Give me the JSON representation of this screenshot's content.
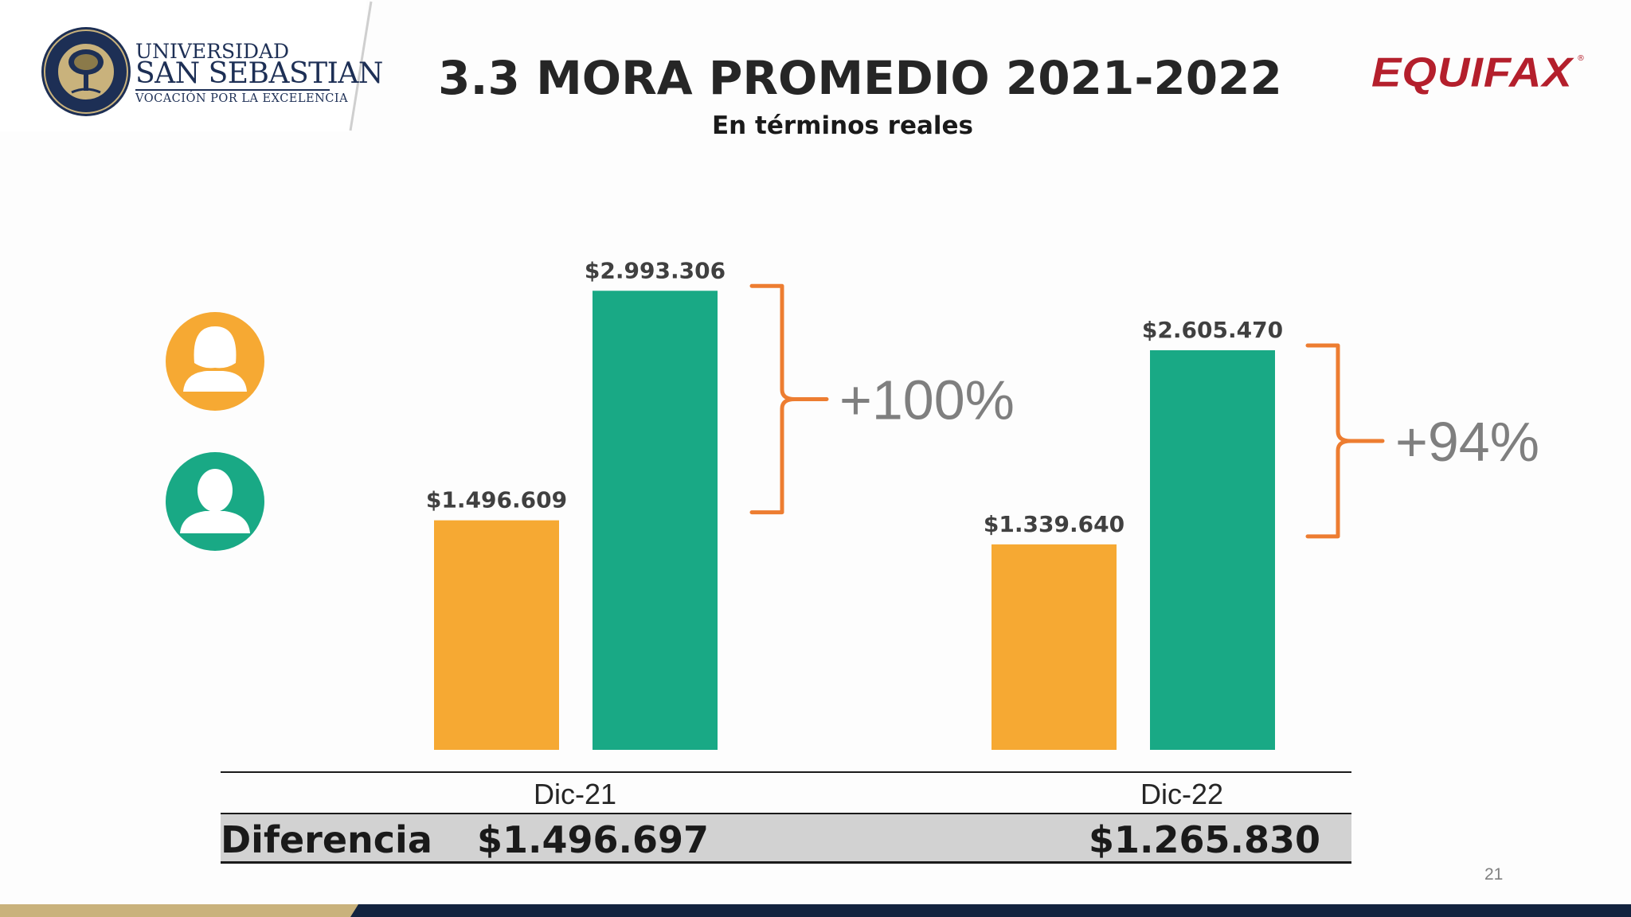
{
  "header": {
    "logo": {
      "line1": "UNIVERSIDAD",
      "line2": "SAN SEBASTIAN",
      "line3": "VOCACIÓN POR LA EXCELENCIA",
      "seal_text": [
        "VERDAD",
        "RAZÓN",
        "VIRTUD",
        "1989"
      ]
    },
    "brand": "EQUIFAX",
    "brand_mark": "®"
  },
  "colors": {
    "female": "#f6a933",
    "male": "#19a985",
    "bracket": "#ed7d31",
    "navy": "#13233f",
    "gold": "#c9b27c",
    "brand_red": "#b41f2c"
  },
  "legend": [
    {
      "series": "female",
      "icon": "woman-icon"
    },
    {
      "series": "male",
      "icon": "man-icon"
    }
  ],
  "chart_data": {
    "type": "bar",
    "title": "3.3 MORA PROMEDIO 2021-2022",
    "subtitle": "En términos reales",
    "categories": [
      "Dic-21",
      "Dic-22"
    ],
    "series": [
      {
        "values": [
          1496609,
          1339640
        ],
        "labels": [
          "$1.496.609",
          "$1.339.640"
        ]
      },
      {
        "values": [
          2993306,
          2605470
        ],
        "labels": [
          "$2.993.306",
          "$2.605.470"
        ]
      }
    ],
    "ylim": [
      0,
      3000000
    ],
    "grid": false,
    "annotations": [
      "+100%",
      "+94%"
    ]
  },
  "difference": {
    "label": "Diferencia",
    "values": [
      "$1.496.697",
      "$1.265.830"
    ]
  },
  "page_number": "21"
}
